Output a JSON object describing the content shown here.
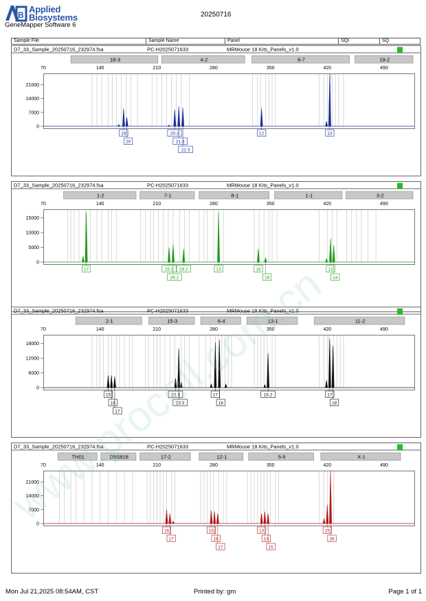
{
  "header": {
    "logo_line1": "Applied",
    "logo_line2": "Biosystems",
    "logo_mark": "AB",
    "software": "GeneMapper Software 6",
    "date": "20250716",
    "columns": [
      "Sample File",
      "Sample Name",
      "Panel",
      "SQI",
      "SQ"
    ]
  },
  "footer": {
    "left": "Mon Jul 21,2025 08:54AM, CST",
    "middle": "Printed by: gm",
    "right": "Page 1 of 1"
  },
  "watermark": "www.procell.com.cn",
  "colors": {
    "blue": "#1a2a9a",
    "green": "#1a9a1a",
    "black": "#111111",
    "red": "#b01818",
    "quality_ok": "#22c022",
    "marker_bar": "#c8c8c8"
  },
  "chart_data": [
    {
      "type": "line",
      "sample_file": "D7_33_Sample_20250716_232974.fsa",
      "sample_name": "PC-H2025071633",
      "panel": "MRMouse 18 Kits_Panels_v1.0",
      "dye": "blue",
      "x_ticks": [
        70,
        140,
        210,
        280,
        350,
        420,
        490
      ],
      "xlim": [
        70,
        530
      ],
      "y_ticks": [
        0,
        7000,
        14000,
        21000
      ],
      "ylim": [
        0,
        26000
      ],
      "markers": [
        {
          "name": "18-3",
          "start": 104,
          "end": 213
        },
        {
          "name": "4-2",
          "start": 216,
          "end": 320
        },
        {
          "name": "6-7",
          "start": 327,
          "end": 449
        },
        {
          "name": "19-2",
          "start": 454,
          "end": 540
        }
      ],
      "bins": [
        130,
        136,
        142,
        150,
        155,
        160,
        166,
        172,
        178,
        186,
        204,
        210,
        216,
        222,
        228,
        234,
        240,
        250,
        328,
        334,
        338,
        344,
        348,
        352,
        356,
        410,
        416,
        420,
        424,
        426,
        430,
        434,
        440
      ],
      "peaks": [
        {
          "x": 169,
          "h": 9000,
          "label": "19",
          "row": 0
        },
        {
          "x": 173,
          "h": 4500,
          "label": "20",
          "row": 1
        },
        {
          "x": 163,
          "h": 900
        },
        {
          "x": 232,
          "h": 8500,
          "label": "20.3",
          "row": 0
        },
        {
          "x": 237,
          "h": 10000,
          "label": "21.3",
          "row": 1
        },
        {
          "x": 242,
          "h": 9500,
          "label": "22.3",
          "row": 2
        },
        {
          "x": 225,
          "h": 600
        },
        {
          "x": 339,
          "h": 9000,
          "label": "12",
          "row": 0
        },
        {
          "x": 423,
          "h": 27500,
          "label": "13",
          "row": 0
        },
        {
          "x": 419,
          "h": 2500
        }
      ]
    },
    {
      "type": "line",
      "sample_file": "D7_33_Sample_20250716_232974.fsa",
      "sample_name": "PC-H2025071633",
      "panel": "MRMouse 18 Kits_Panels_v1.0",
      "dye": "green",
      "x_ticks": [
        70,
        140,
        210,
        280,
        350,
        420,
        490
      ],
      "xlim": [
        70,
        530
      ],
      "y_ticks": [
        0,
        5000,
        10000,
        15000
      ],
      "ylim": [
        0,
        17500
      ],
      "markers": [
        {
          "name": "1-2",
          "start": 95,
          "end": 186
        },
        {
          "name": "7-1",
          "start": 189,
          "end": 258
        },
        {
          "name": "8-1",
          "start": 262,
          "end": 350
        },
        {
          "name": "1-1",
          "start": 355,
          "end": 440
        },
        {
          "name": "3-2",
          "start": 443,
          "end": 548
        }
      ],
      "bins": [
        100,
        104,
        108,
        114,
        122,
        128,
        136,
        142,
        150,
        154,
        160,
        190,
        196,
        202,
        206,
        212,
        218,
        224,
        230,
        238,
        244,
        250,
        262,
        268,
        272,
        280,
        286,
        292,
        330,
        336,
        342,
        348,
        352,
        358,
        410,
        420,
        426,
        432,
        444,
        450,
        456,
        462,
        470,
        480
      ],
      "peaks": [
        {
          "x": 123,
          "h": 17000,
          "label": "17",
          "row": 0
        },
        {
          "x": 119,
          "h": 2000
        },
        {
          "x": 225,
          "h": 5000,
          "label": "25.2",
          "row": 0
        },
        {
          "x": 230,
          "h": 6000,
          "label": "26.2",
          "row": 1
        },
        {
          "x": 243,
          "h": 4500,
          "label": "29.2",
          "row": 0
        },
        {
          "x": 286,
          "h": 17000,
          "label": "13",
          "row": 0
        },
        {
          "x": 335,
          "h": 4500,
          "label": "16",
          "row": 0
        },
        {
          "x": 344,
          "h": 1500,
          "label": "18",
          "row": 1
        },
        {
          "x": 424,
          "h": 8000,
          "label": "13",
          "row": 0
        },
        {
          "x": 428,
          "h": 5800,
          "label": "14",
          "row": 1
        },
        {
          "x": 419,
          "h": 1200
        }
      ]
    },
    {
      "type": "line",
      "sample_file": "D7_33_Sample_20250716_232974.fsa",
      "sample_name": "PC-H2025071633",
      "panel": "MRMouse 18 Kits_Panels_v1.0",
      "dye": "black",
      "x_ticks": [
        70,
        140,
        210,
        280,
        350,
        420,
        490
      ],
      "xlim": [
        70,
        530
      ],
      "y_ticks": [
        0,
        6000,
        12000,
        18000
      ],
      "ylim": [
        0,
        21000
      ],
      "markers": [
        {
          "name": "2-1",
          "start": 110,
          "end": 193
        },
        {
          "name": "15-3",
          "start": 200,
          "end": 258
        },
        {
          "name": "6-4",
          "start": 264,
          "end": 315
        },
        {
          "name": "13-1",
          "start": 321,
          "end": 385
        },
        {
          "name": "11-2",
          "start": 404,
          "end": 517
        }
      ],
      "bins": [
        130,
        136,
        140,
        144,
        150,
        154,
        160,
        164,
        170,
        176,
        180,
        196,
        200,
        206,
        210,
        214,
        220,
        226,
        232,
        240,
        244,
        250,
        262,
        270,
        276,
        282,
        286,
        290,
        294,
        298,
        302,
        330,
        334,
        338,
        342,
        346,
        352,
        356,
        410,
        416,
        420,
        422,
        428,
        432,
        436,
        440
      ],
      "peaks": [
        {
          "x": 150,
          "h": 5000,
          "label": "15",
          "row": 0
        },
        {
          "x": 154,
          "h": 5000,
          "label": "16",
          "row": 1
        },
        {
          "x": 158,
          "h": 4500,
          "label": "17",
          "row": 2
        },
        {
          "x": 233,
          "h": 3800,
          "label": "22.3",
          "row": 0
        },
        {
          "x": 237,
          "h": 16000,
          "label": "23.3",
          "row": 1
        },
        {
          "x": 240,
          "h": 2200
        },
        {
          "x": 282,
          "h": 18500,
          "label": "17",
          "row": 0
        },
        {
          "x": 287,
          "h": 19500,
          "label": "18",
          "row": 1
        },
        {
          "x": 277,
          "h": 1500
        },
        {
          "x": 295,
          "h": 1500
        },
        {
          "x": 347,
          "h": 14000,
          "label": "16.2",
          "row": 0
        },
        {
          "x": 343,
          "h": 1200
        },
        {
          "x": 423,
          "h": 20000,
          "label": "17",
          "row": 0
        },
        {
          "x": 427,
          "h": 17000,
          "label": "18",
          "row": 1
        },
        {
          "x": 419,
          "h": 3000
        }
      ]
    },
    {
      "type": "line",
      "sample_file": "D7_33_Sample_20250716_232974.fsa",
      "sample_name": "PC-H2025071633",
      "panel": "MRMouse 18 Kits_Panels_v1.0",
      "dye": "red",
      "x_ticks": [
        70,
        140,
        210,
        280,
        350,
        420,
        490
      ],
      "xlim": [
        70,
        530
      ],
      "y_ticks": [
        0,
        7000,
        14000,
        21000
      ],
      "ylim": [
        0,
        26000
      ],
      "markers": [
        {
          "name": "TH01",
          "start": 88,
          "end": 138
        },
        {
          "name": "D5S818",
          "start": 141,
          "end": 186
        },
        {
          "name": "17-2",
          "start": 189,
          "end": 253
        },
        {
          "name": "12-1",
          "start": 262,
          "end": 318
        },
        {
          "name": "5-5",
          "start": 323,
          "end": 405
        },
        {
          "name": "X-1",
          "start": 412,
          "end": 512
        }
      ],
      "bins": [
        90,
        96,
        104,
        110,
        120,
        130,
        140,
        150,
        160,
        170,
        180,
        198,
        202,
        206,
        210,
        214,
        218,
        222,
        228,
        232,
        264,
        268,
        272,
        276,
        280,
        286,
        292,
        296,
        322,
        326,
        330,
        334,
        338,
        342,
        346,
        350,
        356,
        360,
        410,
        416,
        420,
        424,
        428
      ],
      "peaks": [
        {
          "x": 222,
          "h": 7000,
          "label": "16",
          "row": 0
        },
        {
          "x": 226,
          "h": 5000,
          "label": "17",
          "row": 1
        },
        {
          "x": 230,
          "h": 1200
        },
        {
          "x": 277,
          "h": 6500,
          "label": "15",
          "row": 0
        },
        {
          "x": 281,
          "h": 6000,
          "label": "16",
          "row": 1
        },
        {
          "x": 285,
          "h": 5000,
          "label": "17",
          "row": 2
        },
        {
          "x": 339,
          "h": 5000,
          "label": "13",
          "row": 0
        },
        {
          "x": 343,
          "h": 6000,
          "label": "14",
          "row": 1
        },
        {
          "x": 347,
          "h": 5000,
          "label": "15",
          "row": 2
        },
        {
          "x": 420,
          "h": 9500,
          "label": "25",
          "row": 0
        },
        {
          "x": 424,
          "h": 30000,
          "label": "26",
          "row": 1
        },
        {
          "x": 416,
          "h": 2500
        }
      ]
    }
  ]
}
